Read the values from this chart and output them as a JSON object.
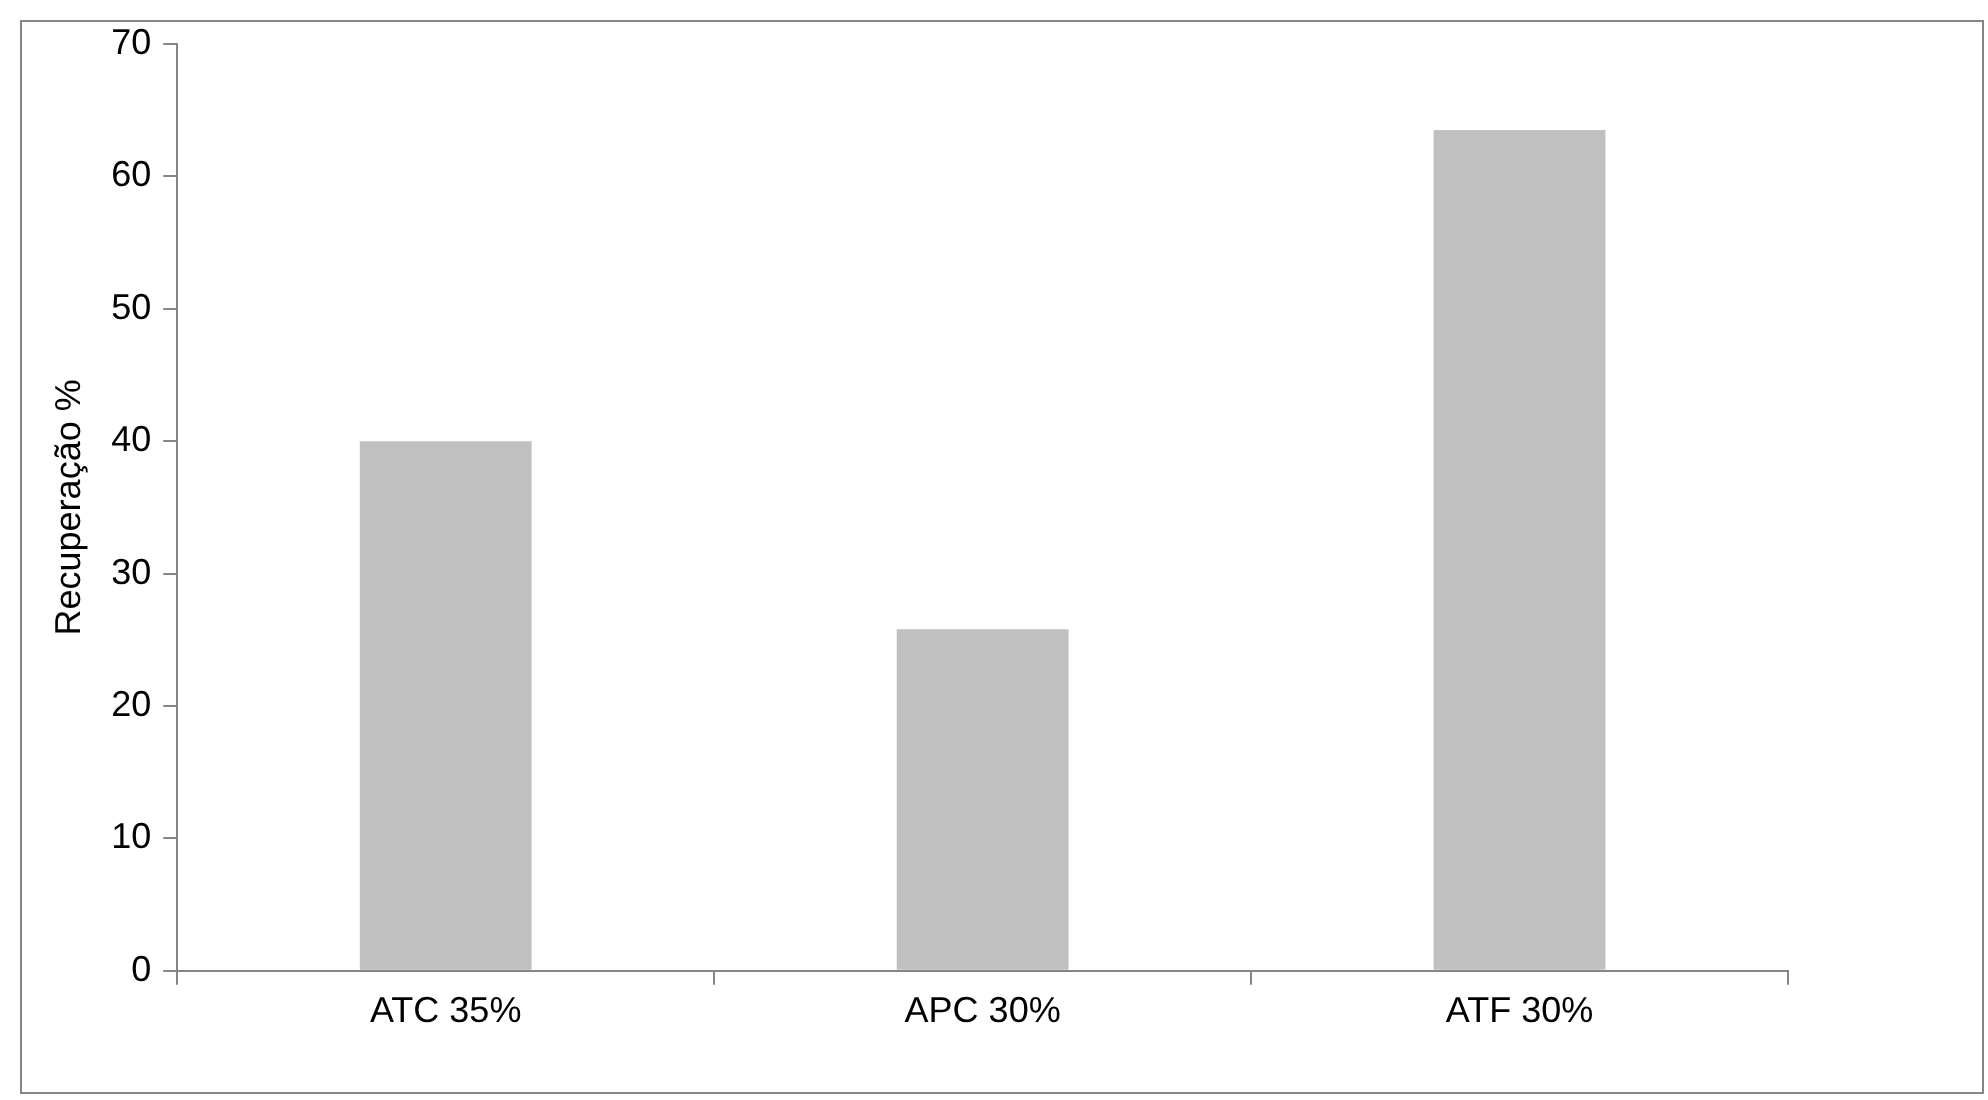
{
  "chart_data": {
    "type": "bar",
    "ylabel": "Recuperação %",
    "categories": [
      "ATC 35%",
      "APC 30%",
      "ATF 30%"
    ],
    "values": [
      40,
      25.8,
      63.5
    ],
    "color": "#c0c0c0",
    "ylim": [
      0,
      70
    ],
    "yticks": [
      0,
      10,
      20,
      30,
      40,
      50,
      60,
      70
    ],
    "grid": false,
    "legend": false
  }
}
